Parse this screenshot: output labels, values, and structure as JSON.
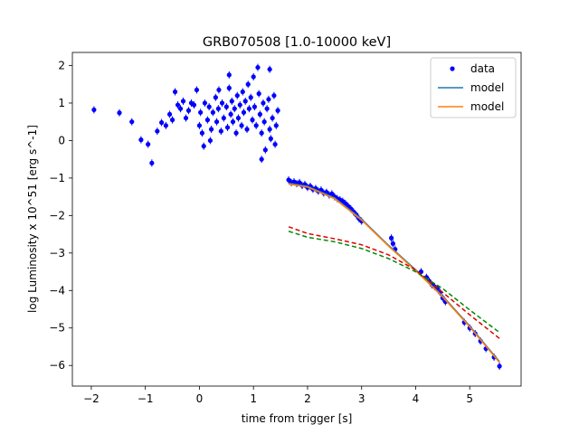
{
  "chart_data": {
    "type": "scatter",
    "title": "GRB070508 [1.0-10000 keV]",
    "xlabel": "time from trigger [s]",
    "ylabel": "log Luminosity x 10^51 [erg s^-1]",
    "xlim": [
      -2.35,
      5.95
    ],
    "ylim": [
      -6.55,
      2.35
    ],
    "xticks": [
      -2,
      -1,
      0,
      1,
      2,
      3,
      4,
      5
    ],
    "yticks": [
      -6,
      -5,
      -4,
      -3,
      -2,
      -1,
      0,
      1,
      2
    ],
    "grid": false,
    "legend_position": "top-right",
    "legend": [
      {
        "label": "data",
        "kind": "marker",
        "color": "#0000ff"
      },
      {
        "label": "model",
        "kind": "line",
        "color": "#1f77b4"
      },
      {
        "label": "model",
        "kind": "line",
        "color": "#ff7f0e"
      }
    ],
    "series": [
      {
        "name": "data",
        "kind": "scatter",
        "color": "#0000ff",
        "points": [
          [
            -1.95,
            0.82
          ],
          [
            -1.48,
            0.74
          ],
          [
            -1.25,
            0.5
          ],
          [
            -1.08,
            0.02
          ],
          [
            -0.95,
            -0.1
          ],
          [
            -0.88,
            -0.6
          ],
          [
            -0.78,
            0.25
          ],
          [
            -0.7,
            0.48
          ],
          [
            -0.62,
            0.4
          ],
          [
            -0.55,
            0.7
          ],
          [
            -0.5,
            0.55
          ],
          [
            -0.45,
            1.3
          ],
          [
            -0.4,
            0.95
          ],
          [
            -0.35,
            0.85
          ],
          [
            -0.3,
            1.05
          ],
          [
            -0.25,
            0.6
          ],
          [
            -0.2,
            0.8
          ],
          [
            -0.15,
            1.0
          ],
          [
            -0.1,
            0.95
          ],
          [
            -0.05,
            1.35
          ],
          [
            0.0,
            0.4
          ],
          [
            0.02,
            0.75
          ],
          [
            0.05,
            0.2
          ],
          [
            0.08,
            -0.15
          ],
          [
            0.1,
            1.0
          ],
          [
            0.15,
            0.55
          ],
          [
            0.18,
            0.9
          ],
          [
            0.22,
            0.3
          ],
          [
            0.25,
            0.75
          ],
          [
            0.3,
            1.15
          ],
          [
            0.32,
            0.5
          ],
          [
            0.35,
            0.85
          ],
          [
            0.4,
            0.25
          ],
          [
            0.42,
            1.0
          ],
          [
            0.45,
            0.6
          ],
          [
            0.5,
            0.9
          ],
          [
            0.52,
            0.35
          ],
          [
            0.55,
            1.4
          ],
          [
            0.58,
            0.7
          ],
          [
            0.6,
            1.05
          ],
          [
            0.62,
            0.5
          ],
          [
            0.65,
            0.85
          ],
          [
            0.68,
            0.2
          ],
          [
            0.7,
            1.2
          ],
          [
            0.72,
            0.6
          ],
          [
            0.75,
            0.95
          ],
          [
            0.78,
            0.4
          ],
          [
            0.8,
            1.3
          ],
          [
            0.82,
            0.75
          ],
          [
            0.85,
            1.05
          ],
          [
            0.88,
            0.3
          ],
          [
            0.9,
            1.5
          ],
          [
            0.92,
            0.85
          ],
          [
            0.95,
            1.15
          ],
          [
            0.98,
            0.55
          ],
          [
            1.0,
            1.7
          ],
          [
            1.02,
            0.9
          ],
          [
            1.05,
            0.4
          ],
          [
            1.08,
            1.95
          ],
          [
            1.1,
            1.25
          ],
          [
            1.12,
            0.7
          ],
          [
            1.15,
            0.2
          ],
          [
            1.18,
            1.0
          ],
          [
            1.2,
            0.5
          ],
          [
            1.22,
            -0.25
          ],
          [
            1.25,
            0.85
          ],
          [
            1.28,
            1.1
          ],
          [
            1.3,
            0.3
          ],
          [
            1.32,
            0.05
          ],
          [
            1.35,
            0.6
          ],
          [
            1.38,
            1.2
          ],
          [
            1.4,
            -0.1
          ],
          [
            1.42,
            0.4
          ],
          [
            1.45,
            0.8
          ],
          [
            1.3,
            1.9
          ],
          [
            0.55,
            1.75
          ],
          [
            0.36,
            1.35
          ],
          [
            0.2,
            0.0
          ],
          [
            1.15,
            -0.5
          ],
          [
            1.65,
            -1.05
          ],
          [
            1.7,
            -1.12
          ],
          [
            1.75,
            -1.1
          ],
          [
            1.8,
            -1.15
          ],
          [
            1.85,
            -1.12
          ],
          [
            1.9,
            -1.2
          ],
          [
            1.95,
            -1.17
          ],
          [
            2.0,
            -1.25
          ],
          [
            2.05,
            -1.22
          ],
          [
            2.1,
            -1.3
          ],
          [
            2.15,
            -1.28
          ],
          [
            2.2,
            -1.35
          ],
          [
            2.25,
            -1.32
          ],
          [
            2.3,
            -1.4
          ],
          [
            2.35,
            -1.38
          ],
          [
            2.4,
            -1.45
          ],
          [
            2.45,
            -1.42
          ],
          [
            2.5,
            -1.5
          ],
          [
            2.55,
            -1.55
          ],
          [
            2.6,
            -1.58
          ],
          [
            2.65,
            -1.62
          ],
          [
            2.7,
            -1.68
          ],
          [
            2.75,
            -1.75
          ],
          [
            2.8,
            -1.82
          ],
          [
            2.85,
            -1.9
          ],
          [
            2.9,
            -1.98
          ],
          [
            2.95,
            -2.08
          ],
          [
            3.0,
            -2.15
          ],
          [
            3.55,
            -2.6
          ],
          [
            3.58,
            -2.75
          ],
          [
            3.62,
            -2.9
          ],
          [
            4.1,
            -3.5
          ],
          [
            4.2,
            -3.65
          ],
          [
            4.25,
            -3.75
          ],
          [
            4.3,
            -3.85
          ],
          [
            4.35,
            -3.9
          ],
          [
            4.4,
            -3.95
          ],
          [
            4.45,
            -4.05
          ],
          [
            4.5,
            -4.2
          ],
          [
            4.55,
            -4.3
          ],
          [
            4.9,
            -4.85
          ],
          [
            5.0,
            -5.0
          ],
          [
            5.1,
            -5.15
          ],
          [
            5.2,
            -5.35
          ],
          [
            5.3,
            -5.55
          ],
          [
            5.45,
            -5.78
          ],
          [
            5.55,
            -6.02
          ]
        ]
      },
      {
        "name": "model",
        "kind": "line",
        "color": "#1f77b4",
        "points": [
          [
            1.65,
            -1.14
          ],
          [
            2.0,
            -1.22
          ],
          [
            2.5,
            -1.53
          ],
          [
            3.0,
            -2.1
          ],
          [
            3.5,
            -2.8
          ],
          [
            4.0,
            -3.45
          ],
          [
            4.5,
            -4.15
          ],
          [
            5.0,
            -4.95
          ],
          [
            5.55,
            -5.9
          ]
        ]
      },
      {
        "name": "model",
        "kind": "line",
        "color": "#ff7f0e",
        "points": [
          [
            1.65,
            -1.16
          ],
          [
            2.0,
            -1.24
          ],
          [
            2.5,
            -1.55
          ],
          [
            3.0,
            -2.12
          ],
          [
            3.5,
            -2.82
          ],
          [
            4.0,
            -3.47
          ],
          [
            4.5,
            -4.17
          ],
          [
            5.0,
            -4.97
          ],
          [
            5.55,
            -5.92
          ]
        ]
      },
      {
        "kind": "dashed",
        "color": "#dd0000",
        "points": [
          [
            1.65,
            -2.3
          ],
          [
            2.0,
            -2.48
          ],
          [
            2.5,
            -2.62
          ],
          [
            3.0,
            -2.78
          ],
          [
            3.5,
            -3.05
          ],
          [
            4.0,
            -3.45
          ],
          [
            4.5,
            -4.05
          ],
          [
            5.0,
            -4.65
          ],
          [
            5.55,
            -5.28
          ]
        ]
      },
      {
        "kind": "dashed",
        "color": "#008800",
        "points": [
          [
            1.65,
            -2.42
          ],
          [
            2.0,
            -2.58
          ],
          [
            2.5,
            -2.7
          ],
          [
            3.0,
            -2.88
          ],
          [
            3.5,
            -3.15
          ],
          [
            4.0,
            -3.5
          ],
          [
            4.5,
            -3.95
          ],
          [
            5.0,
            -4.52
          ],
          [
            5.55,
            -5.12
          ]
        ]
      }
    ]
  }
}
